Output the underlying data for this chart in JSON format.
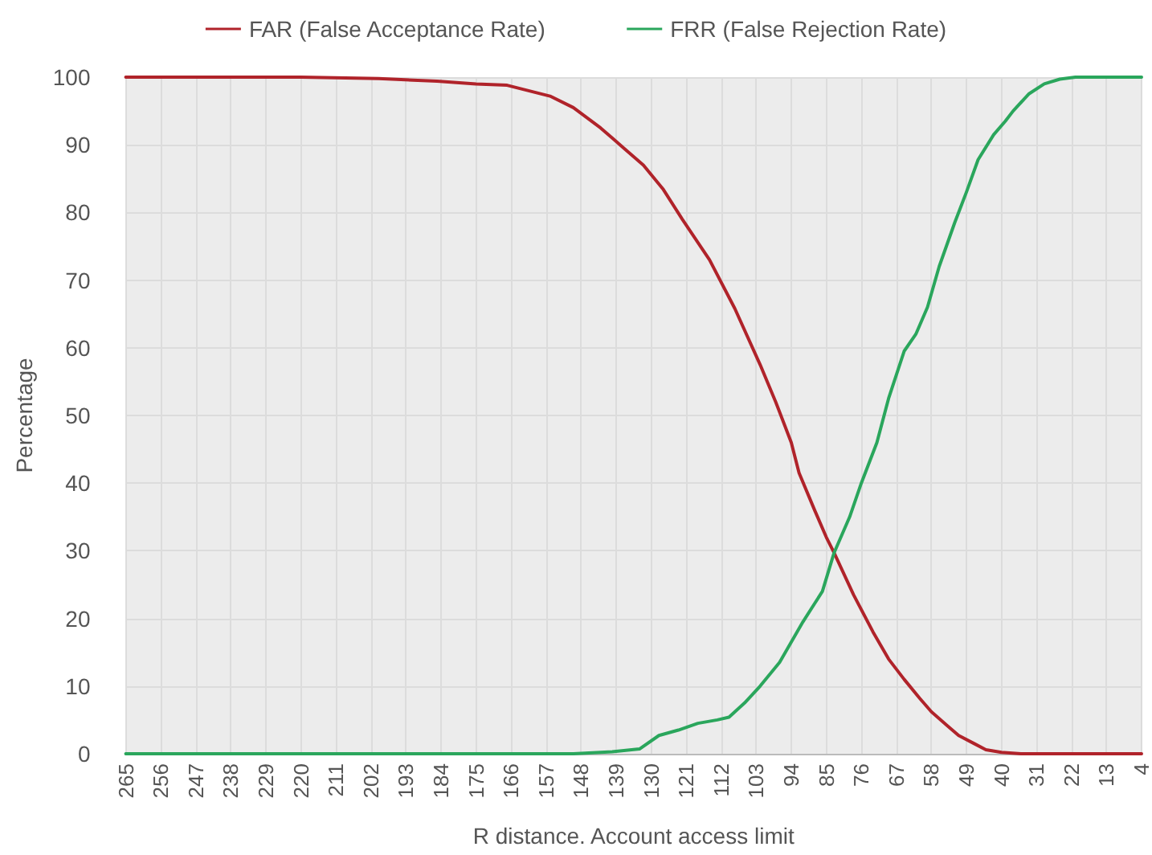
{
  "chart_data": {
    "type": "line",
    "xlabel": "R distance. Account access limit",
    "ylabel": "Percentage",
    "xlim": [
      265,
      4
    ],
    "xticks": [
      265,
      256,
      247,
      238,
      229,
      220,
      211,
      202,
      193,
      184,
      175,
      166,
      157,
      148,
      139,
      130,
      121,
      112,
      103,
      94,
      85,
      76,
      67,
      58,
      49,
      40,
      31,
      22,
      13,
      4
    ],
    "ylim": [
      0,
      100
    ],
    "yticks": [
      0,
      10,
      20,
      30,
      40,
      50,
      60,
      70,
      80,
      90,
      100
    ],
    "grid": true,
    "legend": "top",
    "marker": "none",
    "line_style": "solid",
    "series": [
      {
        "name": "FAR (False Acceptance Rate)",
        "color": "#b0232a",
        "x": [
          265,
          220,
          200,
          185,
          175,
          167,
          156,
          150,
          143,
          137,
          132,
          127,
          122,
          115,
          108.5,
          102,
          98,
          94,
          92,
          88,
          85,
          83,
          78,
          73,
          69,
          65,
          61,
          58,
          54,
          51,
          47,
          44,
          40,
          35,
          4
        ],
        "values": [
          100,
          100,
          99.8,
          99.4,
          99,
          98.8,
          97.2,
          95.5,
          92.5,
          89.5,
          87,
          83.5,
          79,
          73,
          65.8,
          57.5,
          52,
          46,
          41.5,
          36,
          32,
          29.7,
          23.5,
          18,
          14,
          11,
          8.2,
          6.2,
          4.2,
          2.7,
          1.5,
          0.6,
          0.2,
          0,
          0
        ]
      },
      {
        "name": "FRR (False Rejection Rate)",
        "color": "#2aa65c",
        "x": [
          265,
          150,
          140,
          133,
          128,
          123,
          118,
          113,
          110,
          106,
          102,
          97,
          91,
          86,
          83,
          79,
          76,
          72,
          69,
          65,
          62,
          59,
          56,
          52,
          49,
          46,
          42,
          39,
          37,
          33,
          29,
          25,
          21,
          4
        ],
        "values": [
          0,
          0,
          0.3,
          0.7,
          2.7,
          3.5,
          4.5,
          5,
          5.4,
          7.5,
          10,
          13.5,
          19.5,
          24,
          29.7,
          35,
          40,
          46,
          52.5,
          59.5,
          62,
          66,
          72,
          78.5,
          83,
          87.8,
          91.5,
          93.5,
          95,
          97.5,
          99,
          99.7,
          100,
          100
        ]
      }
    ]
  }
}
